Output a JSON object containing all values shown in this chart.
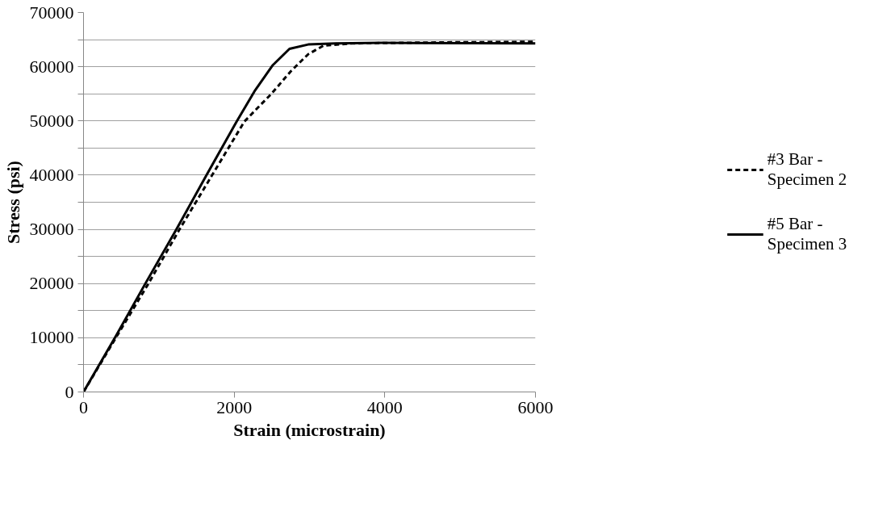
{
  "chart_data": {
    "type": "line",
    "xlabel": "Strain (microstrain)",
    "ylabel": "Stress (psi)",
    "xlim": [
      0,
      6000
    ],
    "xticks": [
      0,
      2000,
      4000,
      6000
    ],
    "ylim": [
      0,
      70000
    ],
    "yticks": [
      0,
      {
        "value": 5000,
        "label": null
      },
      10000,
      {
        "value": 15000,
        "label": null
      },
      20000,
      {
        "value": 25000,
        "label": null
      },
      30000,
      {
        "value": 35000,
        "label": null
      },
      40000,
      {
        "value": 45000,
        "label": null
      },
      50000,
      {
        "value": 55000,
        "label": null
      },
      60000,
      {
        "value": 65000,
        "label": null
      },
      70000
    ],
    "grid": "y",
    "legend": "right",
    "marker": "none",
    "series": [
      {
        "name": "#3 Bar - Specimen 2",
        "color": "#000000",
        "line_style": "dashed",
        "x": [
          0,
          425,
          858,
          1270,
          1703,
          2136,
          2487,
          2755,
          2982,
          3188,
          3559,
          4796,
          6000
        ],
        "values": [
          0,
          9900,
          19900,
          29900,
          39900,
          49900,
          54900,
          59200,
          62300,
          63900,
          64300,
          64500,
          64600
        ]
      },
      {
        "name": "#5 Bar - Specimen 3",
        "color": "#000000",
        "line_style": "solid",
        "x": [
          0,
          425,
          817,
          1229,
          1629,
          2033,
          2280,
          2507,
          2734,
          2982,
          3353,
          3971,
          6000
        ],
        "values": [
          0,
          10200,
          19900,
          29900,
          39900,
          49900,
          55700,
          60200,
          63300,
          64100,
          64300,
          64400,
          64300
        ]
      }
    ]
  }
}
